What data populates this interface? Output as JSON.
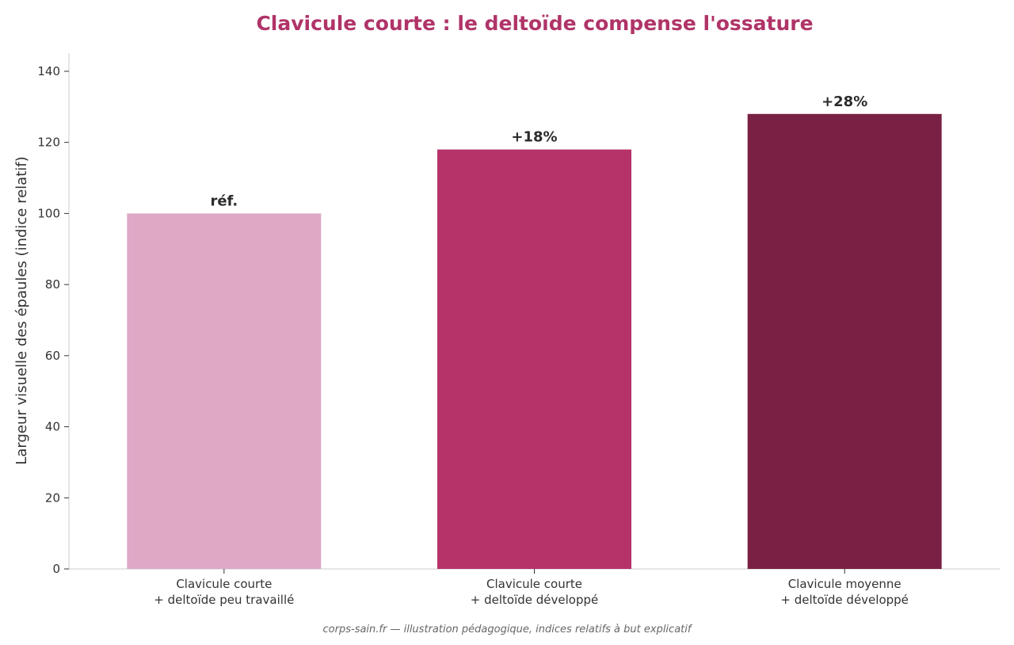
{
  "chart_data": {
    "type": "bar",
    "title": "Clavicule courte : le deltoïde compense l'ossature",
    "ylabel": "Largeur visuelle des épaules (indice relatif)",
    "xlabel": "",
    "ylim": [
      0,
      145
    ],
    "yticks": [
      0,
      20,
      40,
      60,
      80,
      100,
      120,
      140
    ],
    "categories": [
      [
        "Clavicule courte",
        "+ deltoïde peu travaillé"
      ],
      [
        "Clavicule courte",
        "+ deltoïde développé"
      ],
      [
        "Clavicule moyenne",
        "+ deltoïde développé"
      ]
    ],
    "values": [
      100,
      118,
      128
    ],
    "data_labels": [
      "réf.",
      "+18%",
      "+28%"
    ],
    "colors": [
      "#dfa8c5",
      "#b53368",
      "#7a2045"
    ],
    "grid": false,
    "legend": "none"
  },
  "caption": "corps-sain.fr — illustration pédagogique, indices relatifs à but explicatif",
  "title_color": "#b03468"
}
